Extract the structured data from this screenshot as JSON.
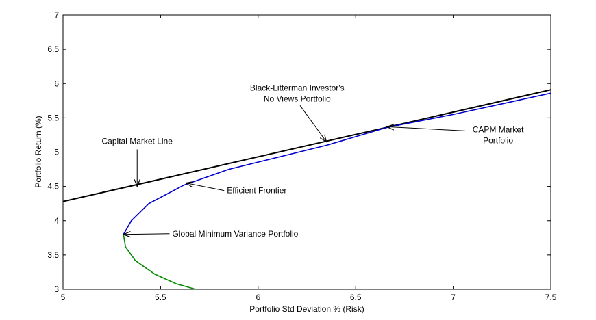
{
  "chart_data": {
    "type": "line",
    "title": "",
    "xlabel": "Portfolio Std Deviation % (Risk)",
    "ylabel": "Portfolio Return (%)",
    "xlim": [
      5,
      7.5
    ],
    "ylim": [
      3,
      7
    ],
    "x_ticks": [
      "5",
      "5.5",
      "6",
      "6.5",
      "7",
      "7.5"
    ],
    "y_ticks": [
      "3",
      "3.5",
      "4",
      "4.5",
      "5",
      "5.5",
      "6",
      "6.5",
      "7"
    ],
    "grid": false,
    "series": [
      {
        "color": "#000000",
        "x": [
          5.0,
          7.5
        ],
        "y": [
          4.28,
          5.91
        ]
      },
      {
        "color": "#0000cc",
        "x": [
          5.31,
          5.35,
          5.44,
          5.62,
          5.85,
          6.35,
          6.66,
          7.0,
          7.5
        ],
        "y": [
          3.8,
          4.0,
          4.25,
          4.52,
          4.75,
          5.1,
          5.36,
          5.55,
          5.86
        ]
      },
      {
        "color": "#008800",
        "x": [
          5.31,
          5.32,
          5.37,
          5.47,
          5.58,
          5.68
        ],
        "y": [
          3.8,
          3.62,
          3.42,
          3.22,
          3.08,
          3.0
        ]
      }
    ],
    "annotations": [
      {
        "text": "Capital Market Line",
        "text_x": 5.38,
        "text_y": 5.12,
        "anchor": "middle",
        "point_x": 5.38,
        "point_y": 4.5
      },
      {
        "text": "Black-Litterman Investor's",
        "text2": "No Views Portfolio",
        "text_x": 6.2,
        "text_y": 5.9,
        "anchor": "middle",
        "point_x": 6.35,
        "point_y": 5.15
      },
      {
        "text": "CAPM Market",
        "text2": "Portfolio",
        "text_x": 7.23,
        "text_y": 5.29,
        "anchor": "middle",
        "point_x": 6.66,
        "point_y": 5.37
      },
      {
        "text": "Efficient Frontier",
        "text_x": 5.84,
        "text_y": 4.4,
        "anchor": "start",
        "point_x": 5.63,
        "point_y": 4.55
      },
      {
        "text": "Global Minimum Variance Portfolio",
        "text_x": 5.56,
        "text_y": 3.77,
        "anchor": "start",
        "point_x": 5.31,
        "point_y": 3.8
      }
    ]
  }
}
